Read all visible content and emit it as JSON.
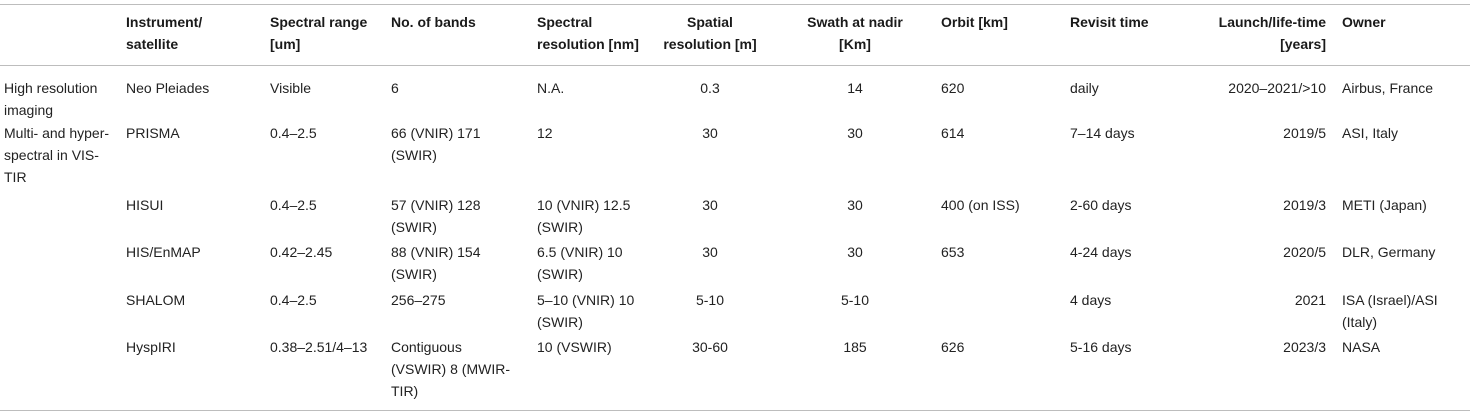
{
  "table": {
    "header": [
      null,
      "Instrument/ satellite",
      "Spectral range [um]",
      "No. of bands",
      "Spectral resolution [nm]",
      "Spatial resolution [m]",
      "Swath at nadir [Km]",
      "Orbit [km]",
      "Revisit time",
      "Launch/life-time [years]",
      "Owner"
    ],
    "rows": [
      [
        "High resolution imaging",
        "Neo Pleiades",
        "Visible",
        "6",
        "N.A.",
        "0.3",
        "14",
        "620",
        "daily",
        "2020–2021/>10",
        "Airbus, France"
      ],
      [
        "Multi- and hyper-spectral in VIS-TIR",
        "PRISMA",
        "0.4–2.5",
        "66 (VNIR) 171 (SWIR)",
        "12",
        "30",
        "30",
        "614",
        "7–14 days",
        "2019/5",
        "ASI, Italy"
      ],
      [
        null,
        "HISUI",
        "0.4–2.5",
        "57 (VNIR) 128 (SWIR)",
        "10 (VNIR) 12.5 (SWIR)",
        "30",
        "30",
        "400 (on ISS)",
        "2-60 days",
        "2019/3",
        "METI (Japan)"
      ],
      [
        null,
        "HIS/EnMAP",
        "0.42–2.45",
        "88 (VNIR) 154 (SWIR)",
        "6.5 (VNIR) 10 (SWIR)",
        "30",
        "30",
        "653",
        "4-24 days",
        "2020/5",
        "DLR, Germany"
      ],
      [
        null,
        "SHALOM",
        "0.4–2.5",
        "256–275",
        "5–10 (VNIR) 10 (SWIR)",
        "5-10",
        "5-10",
        null,
        "4 days",
        "2021",
        "ISA (Israel)/ASI (Italy)"
      ],
      [
        null,
        "HyspIRI",
        "0.38–2.51/4–13",
        "Contiguous (VSWIR) 8 (MWIR-TIR)",
        "10 (VSWIR)",
        "30-60",
        "185",
        "626",
        "5-16 days",
        "2023/3",
        "NASA"
      ]
    ]
  }
}
